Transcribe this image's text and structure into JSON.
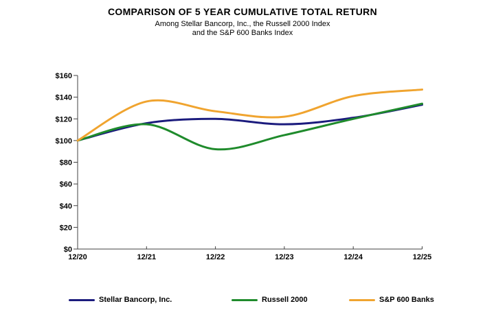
{
  "header": {
    "title": "COMPARISON OF 5 YEAR CUMULATIVE TOTAL RETURN",
    "subtitle_line1": "Among Stellar Bancorp, Inc., the Russell 2000 Index",
    "subtitle_line2": "and the S&P 600 Banks Index"
  },
  "chart_data": {
    "type": "line",
    "title": "COMPARISON OF 5 YEAR CUMULATIVE TOTAL RETURN",
    "subtitle": "Among Stellar Bancorp, Inc., the Russell 2000 Index and the S&P 600 Banks Index",
    "categories": [
      "12/20",
      "12/21",
      "12/22",
      "12/23",
      "12/24",
      "12/25"
    ],
    "series": [
      {
        "name": "Stellar Bancorp, Inc.",
        "color": "#1b1b7d",
        "values": [
          100,
          116,
          120,
          115,
          121,
          133
        ]
      },
      {
        "name": "Russell 2000",
        "color": "#1f8b2c",
        "values": [
          100,
          115,
          92,
          105,
          120,
          134
        ]
      },
      {
        "name": "S&P 600 Banks",
        "color": "#f0a42f",
        "values": [
          100,
          136,
          127,
          122,
          141,
          147
        ]
      }
    ],
    "xlabel": "",
    "ylabel": "",
    "ylim": [
      0,
      160
    ],
    "ytick_step": 20,
    "ytick_labels": [
      "$0",
      "$20",
      "$40",
      "$60",
      "$80",
      "$100",
      "$120",
      "$140",
      "$160"
    ],
    "grid": false,
    "smooth": true,
    "legend_position": "bottom",
    "axis_color": "#404040",
    "label_color": "#000000"
  }
}
